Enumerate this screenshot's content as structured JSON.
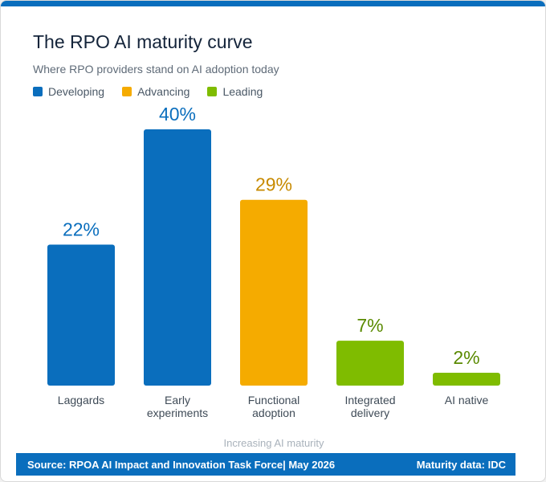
{
  "title": "The RPO AI maturity curve",
  "subtitle": "Where RPO providers stand on AI adoption today",
  "legend": [
    {
      "label": "Developing",
      "color": "#0a6ebd"
    },
    {
      "label": "Advancing",
      "color": "#f5ab00"
    },
    {
      "label": "Leading",
      "color": "#7fbc00"
    }
  ],
  "chart_data": {
    "type": "bar",
    "categories": [
      [
        "Laggards"
      ],
      [
        "Early",
        "experiments"
      ],
      [
        "Functional",
        "adoption"
      ],
      [
        "Integrated",
        "delivery"
      ],
      [
        "AI native"
      ]
    ],
    "values": [
      22,
      40,
      29,
      7,
      2
    ],
    "value_labels": [
      "22%",
      "40%",
      "29%",
      "7%",
      "2%"
    ],
    "groups": [
      "Developing",
      "Developing",
      "Advancing",
      "Leading",
      "Leading"
    ],
    "xlabel": "Increasing AI maturity",
    "ylabel": "",
    "ylim": [
      0,
      40
    ],
    "grid": false
  },
  "footer": {
    "source": "Source: RPOA AI Impact and Innovation Task Force| May 2026",
    "maturity": "Maturity data: IDC"
  }
}
